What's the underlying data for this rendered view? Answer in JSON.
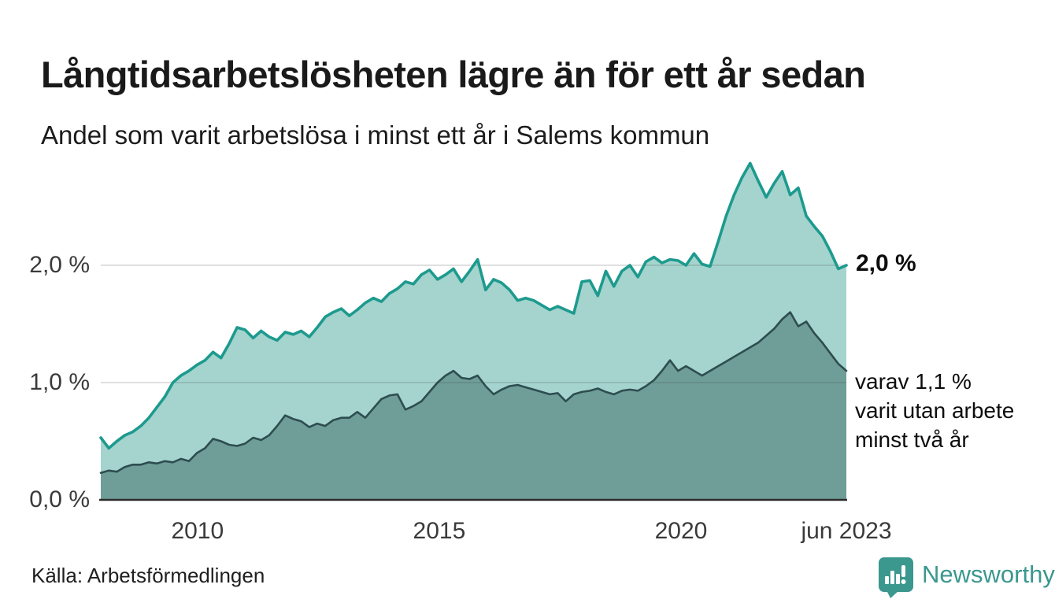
{
  "header": {
    "title": "Långtidsarbetslösheten lägre än för ett år sedan",
    "subtitle": "Andel som varit arbetslösa i minst ett år i Salems kommun"
  },
  "chart_data": {
    "type": "area",
    "title": "Långtidsarbetslösheten lägre än för ett år sedan",
    "subtitle": "Andel som varit arbetslösa i minst ett år i Salems kommun",
    "x_range": [
      2008.0,
      2023.42
    ],
    "ylim": [
      0,
      3.0
    ],
    "grid": "horizontal",
    "legend_position": "none",
    "x_ticks": [
      {
        "pos": 2010,
        "label": "2010"
      },
      {
        "pos": 2015,
        "label": "2015"
      },
      {
        "pos": 2020,
        "label": "2020"
      },
      {
        "pos": 2023.42,
        "label": "jun 2023"
      }
    ],
    "y_ticks": [
      {
        "value": 0,
        "label": "0,0 %"
      },
      {
        "value": 1,
        "label": "1,0 %"
      },
      {
        "value": 2,
        "label": "2,0 %"
      }
    ],
    "series": [
      {
        "id": "arbetslosa-minst-ett-ar",
        "label": "minst ett år",
        "line_color": "#1d9a8e",
        "fill_color": "#a4d4cd",
        "end_value": 2.0,
        "end_value_label": "2,0 %",
        "values": [
          0.53,
          0.44,
          0.5,
          0.55,
          0.58,
          0.63,
          0.7,
          0.79,
          0.88,
          1.0,
          1.06,
          1.1,
          1.15,
          1.19,
          1.26,
          1.21,
          1.33,
          1.47,
          1.45,
          1.38,
          1.44,
          1.39,
          1.36,
          1.43,
          1.41,
          1.44,
          1.39,
          1.47,
          1.56,
          1.6,
          1.63,
          1.57,
          1.62,
          1.68,
          1.72,
          1.69,
          1.76,
          1.8,
          1.86,
          1.84,
          1.92,
          1.96,
          1.88,
          1.92,
          1.97,
          1.86,
          1.95,
          2.05,
          1.79,
          1.88,
          1.85,
          1.79,
          1.7,
          1.72,
          1.7,
          1.66,
          1.62,
          1.65,
          1.62,
          1.59,
          1.86,
          1.87,
          1.74,
          1.95,
          1.82,
          1.95,
          2.0,
          1.9,
          2.03,
          2.07,
          2.02,
          2.05,
          2.04,
          2.0,
          2.1,
          2.01,
          1.99,
          2.2,
          2.42,
          2.6,
          2.75,
          2.87,
          2.72,
          2.58,
          2.7,
          2.8,
          2.6,
          2.66,
          2.42,
          2.33,
          2.25,
          2.12,
          1.97,
          2.0
        ]
      },
      {
        "id": "arbetslosa-minst-tva-ar",
        "label": "minst två år",
        "line_color": "#2e4d50",
        "fill_color": "#6f9d98",
        "end_value": 1.1,
        "end_value_label": "varav 1,1 % varit utan arbete minst två år",
        "values": [
          0.23,
          0.25,
          0.24,
          0.28,
          0.3,
          0.3,
          0.32,
          0.31,
          0.33,
          0.32,
          0.35,
          0.33,
          0.4,
          0.44,
          0.52,
          0.5,
          0.47,
          0.46,
          0.48,
          0.53,
          0.51,
          0.55,
          0.63,
          0.72,
          0.69,
          0.67,
          0.62,
          0.65,
          0.63,
          0.68,
          0.7,
          0.7,
          0.75,
          0.7,
          0.78,
          0.86,
          0.89,
          0.9,
          0.77,
          0.8,
          0.84,
          0.92,
          1.0,
          1.06,
          1.1,
          1.04,
          1.03,
          1.06,
          0.97,
          0.9,
          0.94,
          0.97,
          0.98,
          0.96,
          0.94,
          0.92,
          0.9,
          0.91,
          0.84,
          0.9,
          0.92,
          0.93,
          0.95,
          0.92,
          0.9,
          0.93,
          0.94,
          0.93,
          0.97,
          1.02,
          1.1,
          1.19,
          1.1,
          1.14,
          1.1,
          1.06,
          1.1,
          1.14,
          1.18,
          1.22,
          1.26,
          1.3,
          1.34,
          1.4,
          1.46,
          1.54,
          1.6,
          1.48,
          1.52,
          1.42,
          1.34,
          1.25,
          1.16,
          1.1
        ]
      }
    ],
    "annotations": {
      "end_value": "2,0 %",
      "note_lines": [
        "varav 1,1 %",
        "varit utan arbete",
        "minst två år"
      ]
    }
  },
  "footer": {
    "source": "Källa: Arbetsförmedlingen",
    "brand": "Newsworthy"
  },
  "colors": {
    "background": "#ffffff",
    "title_text": "#1a1a1a",
    "axis_text": "#3a3a3a",
    "gridline": "#d9d9d9",
    "baseline": "#2b2b2b",
    "series1_line": "#1d9a8e",
    "series1_fill": "#a4d4cd",
    "series2_line": "#2e4d50",
    "series2_fill": "#6f9d98",
    "brand_teal": "#3a988e"
  }
}
